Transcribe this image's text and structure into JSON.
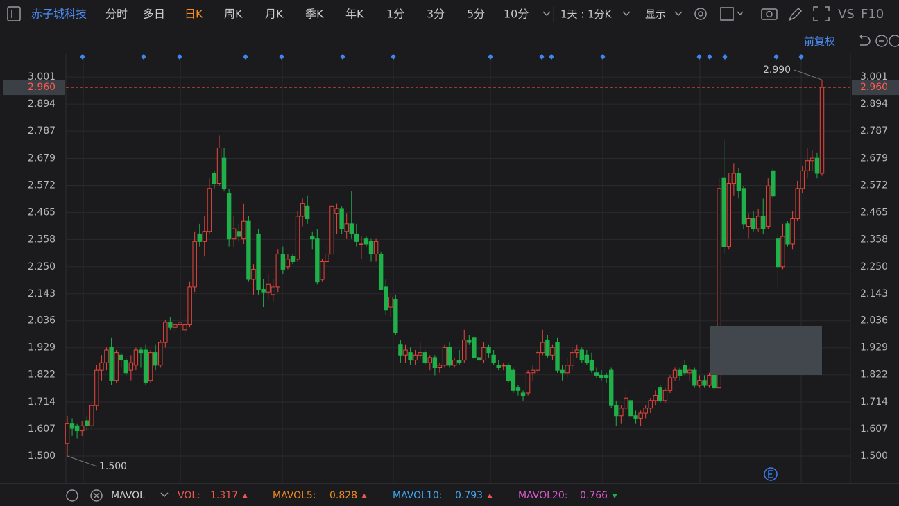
{
  "toolbar": {
    "stock": "赤子城科技",
    "tabs": [
      "分时",
      "多日",
      "日K",
      "周K",
      "月K",
      "季K",
      "年K",
      "1分",
      "3分",
      "5分",
      "10分"
    ],
    "active_tab": 2,
    "period": "1天 : 1分K",
    "display": "显示",
    "vs": "VS",
    "f10": "F10"
  },
  "adjust": "前复权",
  "chart_data": {
    "type": "candlestick",
    "ylim": [
      1.393,
      3.092
    ],
    "yticks": [
      {
        "value": 1.5,
        "label": "1.500"
      },
      1.607,
      1.714,
      1.822,
      1.929,
      2.036,
      2.143,
      {
        "value": 2.25,
        "label": "2.250"
      },
      2.358,
      2.465,
      2.572,
      2.679,
      2.787,
      2.894,
      3.001
    ],
    "up_color": "#e8463c",
    "down_color": "#1fb04a",
    "last_price": {
      "value": 2.96,
      "label": "2.960"
    },
    "high_label": {
      "value": 2.99,
      "label": "2.990"
    },
    "low_label": {
      "value": 1.5,
      "label": "1.500"
    },
    "ohlc": [
      [
        1.55,
        1.66,
        1.5,
        1.63
      ],
      [
        1.63,
        1.65,
        1.58,
        1.61
      ],
      [
        1.62,
        1.63,
        1.57,
        1.6
      ],
      [
        1.6,
        1.64,
        1.58,
        1.62
      ],
      [
        1.64,
        1.66,
        1.6,
        1.62
      ],
      [
        1.62,
        1.71,
        1.61,
        1.7
      ],
      [
        1.7,
        1.86,
        1.68,
        1.84
      ],
      [
        1.84,
        1.9,
        1.8,
        1.87
      ],
      [
        1.87,
        1.93,
        1.84,
        1.92
      ],
      [
        1.93,
        1.97,
        1.78,
        1.8
      ],
      [
        1.8,
        1.92,
        1.79,
        1.91
      ],
      [
        1.9,
        1.91,
        1.85,
        1.88
      ],
      [
        1.88,
        1.89,
        1.82,
        1.83
      ],
      [
        1.84,
        1.9,
        1.8,
        1.87
      ],
      [
        1.86,
        1.93,
        1.84,
        1.92
      ],
      [
        1.92,
        1.93,
        1.85,
        1.91
      ],
      [
        1.92,
        1.94,
        1.78,
        1.79
      ],
      [
        1.8,
        1.92,
        1.79,
        1.91
      ],
      [
        1.91,
        1.94,
        1.84,
        1.86
      ],
      [
        1.86,
        1.96,
        1.85,
        1.95
      ],
      [
        1.95,
        2.04,
        1.93,
        2.03
      ],
      [
        2.03,
        2.05,
        2.0,
        2.01
      ],
      [
        2.01,
        2.04,
        1.99,
        2.02
      ],
      [
        2.02,
        2.05,
        1.97,
        2.03
      ],
      [
        2.0,
        2.06,
        1.98,
        2.02
      ],
      [
        2.02,
        2.19,
        2.01,
        2.17
      ],
      [
        2.17,
        2.39,
        2.15,
        2.35
      ],
      [
        2.38,
        2.42,
        2.33,
        2.35
      ],
      [
        2.35,
        2.45,
        2.29,
        2.39
      ],
      [
        2.39,
        2.6,
        2.38,
        2.56
      ],
      [
        2.62,
        2.63,
        2.56,
        2.58
      ],
      [
        2.58,
        2.77,
        2.57,
        2.72
      ],
      [
        2.68,
        2.72,
        2.55,
        2.56
      ],
      [
        2.54,
        2.56,
        2.33,
        2.36
      ],
      [
        2.36,
        2.45,
        2.33,
        2.4
      ],
      [
        2.39,
        2.42,
        2.35,
        2.37
      ],
      [
        2.36,
        2.5,
        2.34,
        2.43
      ],
      [
        2.43,
        2.45,
        2.19,
        2.2
      ],
      [
        2.2,
        2.26,
        2.14,
        2.24
      ],
      [
        2.38,
        2.4,
        2.14,
        2.16
      ],
      [
        2.16,
        2.2,
        2.09,
        2.15
      ],
      [
        2.15,
        2.22,
        2.12,
        2.18
      ],
      [
        2.14,
        2.2,
        2.11,
        2.17
      ],
      [
        2.17,
        2.32,
        2.15,
        2.3
      ],
      [
        2.3,
        2.33,
        2.22,
        2.24
      ],
      [
        2.25,
        2.3,
        2.24,
        2.28
      ],
      [
        2.29,
        2.3,
        2.26,
        2.27
      ],
      [
        2.28,
        2.47,
        2.27,
        2.45
      ],
      [
        2.45,
        2.52,
        2.41,
        2.5
      ],
      [
        2.49,
        2.53,
        2.42,
        2.44
      ],
      [
        2.37,
        2.39,
        2.32,
        2.36
      ],
      [
        2.36,
        2.4,
        2.18,
        2.19
      ],
      [
        2.2,
        2.28,
        2.19,
        2.27
      ],
      [
        2.27,
        2.34,
        2.25,
        2.3
      ],
      [
        2.3,
        2.5,
        2.29,
        2.49
      ],
      [
        2.46,
        2.5,
        2.38,
        2.48
      ],
      [
        2.48,
        2.49,
        2.38,
        2.4
      ],
      [
        2.39,
        2.46,
        2.36,
        2.42
      ],
      [
        2.42,
        2.55,
        2.36,
        2.38
      ],
      [
        2.38,
        2.42,
        2.33,
        2.35
      ],
      [
        2.34,
        2.37,
        2.28,
        2.34
      ],
      [
        2.36,
        2.37,
        2.33,
        2.34
      ],
      [
        2.35,
        2.36,
        2.27,
        2.3
      ],
      [
        2.3,
        2.36,
        2.27,
        2.35
      ],
      [
        2.3,
        2.31,
        2.16,
        2.16
      ],
      [
        2.17,
        2.2,
        2.06,
        2.08
      ],
      [
        2.09,
        2.14,
        2.05,
        2.13
      ],
      [
        2.12,
        2.14,
        1.98,
        1.99
      ],
      [
        1.94,
        1.96,
        1.87,
        1.9
      ],
      [
        1.9,
        1.94,
        1.87,
        1.92
      ],
      [
        1.91,
        1.93,
        1.86,
        1.88
      ],
      [
        1.88,
        1.92,
        1.86,
        1.9
      ],
      [
        1.9,
        1.95,
        1.89,
        1.91
      ],
      [
        1.91,
        1.92,
        1.86,
        1.87
      ],
      [
        1.87,
        1.9,
        1.84,
        1.89
      ],
      [
        1.89,
        1.9,
        1.82,
        1.85
      ],
      [
        1.85,
        1.87,
        1.83,
        1.86
      ],
      [
        1.86,
        1.94,
        1.85,
        1.93
      ],
      [
        1.93,
        1.95,
        1.85,
        1.86
      ],
      [
        1.86,
        1.89,
        1.85,
        1.88
      ],
      [
        1.88,
        1.92,
        1.86,
        1.87
      ],
      [
        1.88,
        2.0,
        1.87,
        1.96
      ],
      [
        1.96,
        1.98,
        1.94,
        1.95
      ],
      [
        1.97,
        1.98,
        1.88,
        1.89
      ],
      [
        1.89,
        1.93,
        1.86,
        1.88
      ],
      [
        1.88,
        1.95,
        1.87,
        1.93
      ],
      [
        1.93,
        1.94,
        1.89,
        1.91
      ],
      [
        1.9,
        1.92,
        1.86,
        1.87
      ],
      [
        1.86,
        1.88,
        1.84,
        1.85
      ],
      [
        1.86,
        1.87,
        1.84,
        1.86
      ],
      [
        1.86,
        1.87,
        1.79,
        1.8
      ],
      [
        1.84,
        1.85,
        1.75,
        1.76
      ],
      [
        1.77,
        1.78,
        1.74,
        1.76
      ],
      [
        1.75,
        1.76,
        1.72,
        1.74
      ],
      [
        1.75,
        1.84,
        1.74,
        1.83
      ],
      [
        1.83,
        1.86,
        1.8,
        1.84
      ],
      [
        1.84,
        1.92,
        1.83,
        1.91
      ],
      [
        1.91,
        2.0,
        1.9,
        1.95
      ],
      [
        1.96,
        1.98,
        1.89,
        1.9
      ],
      [
        1.9,
        1.94,
        1.88,
        1.93
      ],
      [
        1.95,
        1.97,
        1.83,
        1.84
      ],
      [
        1.84,
        1.86,
        1.8,
        1.83
      ],
      [
        1.83,
        1.89,
        1.81,
        1.86
      ],
      [
        1.86,
        1.93,
        1.84,
        1.91
      ],
      [
        1.91,
        1.94,
        1.89,
        1.92
      ],
      [
        1.92,
        1.93,
        1.87,
        1.88
      ],
      [
        1.9,
        1.92,
        1.86,
        1.87
      ],
      [
        1.88,
        1.91,
        1.83,
        1.84
      ],
      [
        1.83,
        1.85,
        1.81,
        1.82
      ],
      [
        1.82,
        1.84,
        1.8,
        1.81
      ],
      [
        1.82,
        1.83,
        1.79,
        1.81
      ],
      [
        1.84,
        1.85,
        1.69,
        1.7
      ],
      [
        1.7,
        1.72,
        1.62,
        1.66
      ],
      [
        1.66,
        1.7,
        1.63,
        1.69
      ],
      [
        1.69,
        1.76,
        1.68,
        1.73
      ],
      [
        1.72,
        1.74,
        1.65,
        1.66
      ],
      [
        1.66,
        1.68,
        1.63,
        1.65
      ],
      [
        1.65,
        1.68,
        1.62,
        1.67
      ],
      [
        1.67,
        1.7,
        1.65,
        1.69
      ],
      [
        1.69,
        1.73,
        1.67,
        1.72
      ],
      [
        1.72,
        1.76,
        1.7,
        1.74
      ],
      [
        1.77,
        1.78,
        1.71,
        1.72
      ],
      [
        1.72,
        1.77,
        1.71,
        1.76
      ],
      [
        1.76,
        1.82,
        1.75,
        1.81
      ],
      [
        1.81,
        1.85,
        1.8,
        1.84
      ],
      [
        1.84,
        1.85,
        1.8,
        1.82
      ],
      [
        1.86,
        1.88,
        1.82,
        1.83
      ],
      [
        1.83,
        1.85,
        1.8,
        1.84
      ],
      [
        1.84,
        1.85,
        1.77,
        1.78
      ],
      [
        1.78,
        1.82,
        1.77,
        1.8
      ],
      [
        1.8,
        1.82,
        1.77,
        1.78
      ],
      [
        1.78,
        1.83,
        1.77,
        1.82
      ],
      [
        1.82,
        1.84,
        1.76,
        1.77
      ],
      [
        1.77,
        2.6,
        1.77,
        2.56
      ],
      [
        2.6,
        2.75,
        2.3,
        2.33
      ],
      [
        2.33,
        2.62,
        2.32,
        2.58
      ],
      [
        2.58,
        2.66,
        2.53,
        2.62
      ],
      [
        2.62,
        2.64,
        2.52,
        2.55
      ],
      [
        2.56,
        2.57,
        2.4,
        2.42
      ],
      [
        2.41,
        2.46,
        2.36,
        2.44
      ],
      [
        2.44,
        2.47,
        2.39,
        2.4
      ],
      [
        2.4,
        2.48,
        2.39,
        2.45
      ],
      [
        2.45,
        2.52,
        2.38,
        2.4
      ],
      [
        2.41,
        2.6,
        2.4,
        2.57
      ],
      [
        2.63,
        2.64,
        2.52,
        2.53
      ],
      [
        2.36,
        2.38,
        2.17,
        2.25
      ],
      [
        2.25,
        2.42,
        2.24,
        2.37
      ],
      [
        2.42,
        2.43,
        2.33,
        2.34
      ],
      [
        2.34,
        2.47,
        2.32,
        2.44
      ],
      [
        2.44,
        2.59,
        2.43,
        2.56
      ],
      [
        2.56,
        2.65,
        2.54,
        2.63
      ],
      [
        2.63,
        2.72,
        2.6,
        2.67
      ],
      [
        2.67,
        2.71,
        2.63,
        2.68
      ],
      [
        2.68,
        2.7,
        2.6,
        2.62
      ],
      [
        2.62,
        2.99,
        2.61,
        2.96
      ]
    ]
  },
  "indicator": {
    "name": "MAVOL",
    "items": [
      {
        "label": "VOL:",
        "value": 1.317,
        "color": "#f0564e",
        "trend": "up"
      },
      {
        "label": "MAVOL5:",
        "value": 0.828,
        "color": "#f08a24",
        "trend": "up"
      },
      {
        "label": "MAVOL10:",
        "value": 0.793,
        "color": "#3fa9f5",
        "trend": "up"
      },
      {
        "label": "MAVOL20:",
        "value": 0.766,
        "color": "#e05ad6",
        "trend": "down"
      }
    ]
  }
}
